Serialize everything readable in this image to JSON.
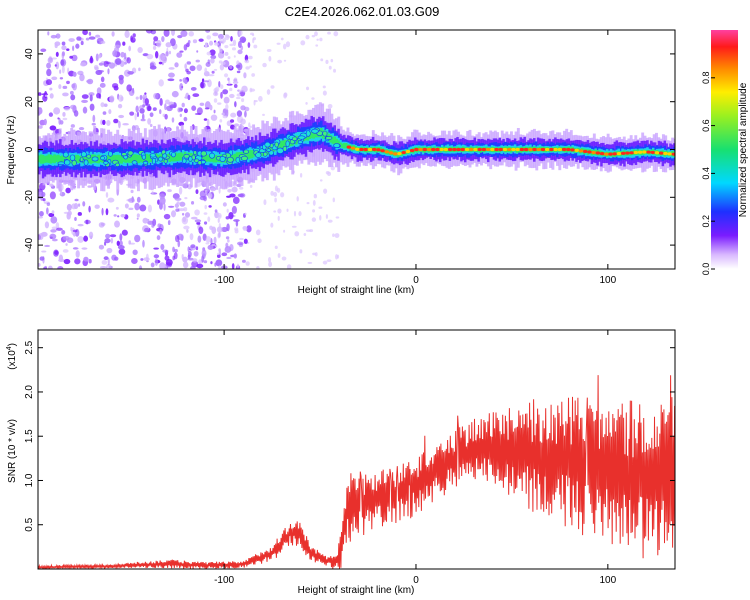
{
  "title": "C2E4.2026.062.01.03.G09",
  "colors": {
    "line": "#e8302c",
    "spectrum_core": "#ff2a1a",
    "spectrum_mid": "#28e890",
    "spectrum_outer": "#2040ff",
    "scatter": "#7b1cff"
  },
  "chart_data": [
    {
      "type": "heatmap",
      "name": "spectrogram",
      "xlabel": "Height of straight line (km)",
      "ylabel": "Frequency (Hz)",
      "xlim": [
        -197,
        135
      ],
      "ylim": [
        -50,
        50
      ],
      "xticks": [
        -100,
        0,
        100
      ],
      "yticks": [
        -40,
        -20,
        0,
        20,
        40
      ],
      "xtick_labels": [
        "-100",
        "0",
        "100"
      ],
      "ytick_labels": [
        "-40",
        "-20",
        "0",
        "20",
        "40"
      ],
      "colorbar": {
        "label": "Normalized spectral amplitude",
        "range": [
          0,
          1
        ],
        "ticks": [
          0.0,
          0.2,
          0.4,
          0.6,
          0.8
        ],
        "tick_labels": [
          "0.0",
          "0.2",
          "0.4",
          "0.6",
          "0.8"
        ]
      },
      "ridge": {
        "x": [
          -180,
          -150,
          -120,
          -100,
          -80,
          -60,
          -50,
          -40,
          -30,
          -20,
          -10,
          0,
          40,
          80,
          100,
          120,
          135
        ],
        "freq_hz": [
          -4,
          -4,
          -3,
          -4,
          -1,
          5,
          7,
          2,
          0,
          0,
          -2,
          0,
          0,
          0,
          -2,
          -1,
          -2
        ]
      }
    },
    {
      "type": "line",
      "name": "snr",
      "xlabel": "Height of straight line (km)",
      "ylabel": "SNR (10 * v/v)",
      "scale_label": "(x10",
      "scale_exponent": "4",
      "xlim": [
        -197,
        135
      ],
      "ylim": [
        0,
        2.7
      ],
      "xticks": [
        -100,
        0,
        100
      ],
      "yticks": [
        0.5,
        1.0,
        1.5,
        2.0,
        2.5
      ],
      "xtick_labels": [
        "-100",
        "0",
        "100"
      ],
      "ytick_labels": [
        "0.5",
        "1.0",
        "1.5",
        "2.0",
        "2.5"
      ],
      "series": [
        {
          "name": "SNR",
          "x": [
            -197,
            -160,
            -130,
            -110,
            -90,
            -75,
            -65,
            -60,
            -55,
            -45,
            -40,
            -37,
            -35,
            -20,
            -10,
            0,
            10,
            20,
            30,
            40,
            50,
            60,
            70,
            80,
            90,
            100,
            110,
            120,
            135
          ],
          "baseline": [
            0.02,
            0.03,
            0.06,
            0.04,
            0.05,
            0.18,
            0.42,
            0.38,
            0.18,
            0.08,
            0.12,
            0.55,
            0.7,
            0.8,
            0.85,
            0.95,
            1.1,
            1.25,
            1.35,
            1.38,
            1.35,
            1.3,
            1.25,
            1.2,
            1.15,
            1.1,
            1.05,
            1.0,
            1.0
          ],
          "amplitude": [
            0.02,
            0.02,
            0.05,
            0.04,
            0.04,
            0.1,
            0.15,
            0.15,
            0.1,
            0.05,
            0.2,
            0.35,
            0.4,
            0.35,
            0.35,
            0.35,
            0.35,
            0.35,
            0.35,
            0.4,
            0.55,
            0.65,
            0.7,
            0.75,
            0.8,
            0.8,
            0.85,
            0.9,
            0.95
          ]
        }
      ]
    }
  ]
}
